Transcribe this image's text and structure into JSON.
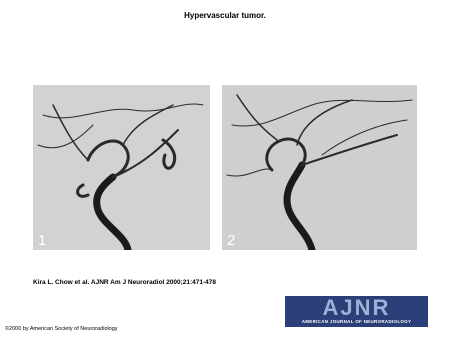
{
  "header": {
    "title": "Hypervascular tumor."
  },
  "figures": [
    {
      "label": "1"
    },
    {
      "label": "2"
    }
  ],
  "citation": "Kira L. Chow et al. AJNR Am J Neuroradiol 2000;21:471-478",
  "logo": {
    "title": "AJNR",
    "subtitle": "AMERICAN JOURNAL OF NEURORADIOLOGY"
  },
  "copyright": "©2000 by American Society of Neuroradiology"
}
